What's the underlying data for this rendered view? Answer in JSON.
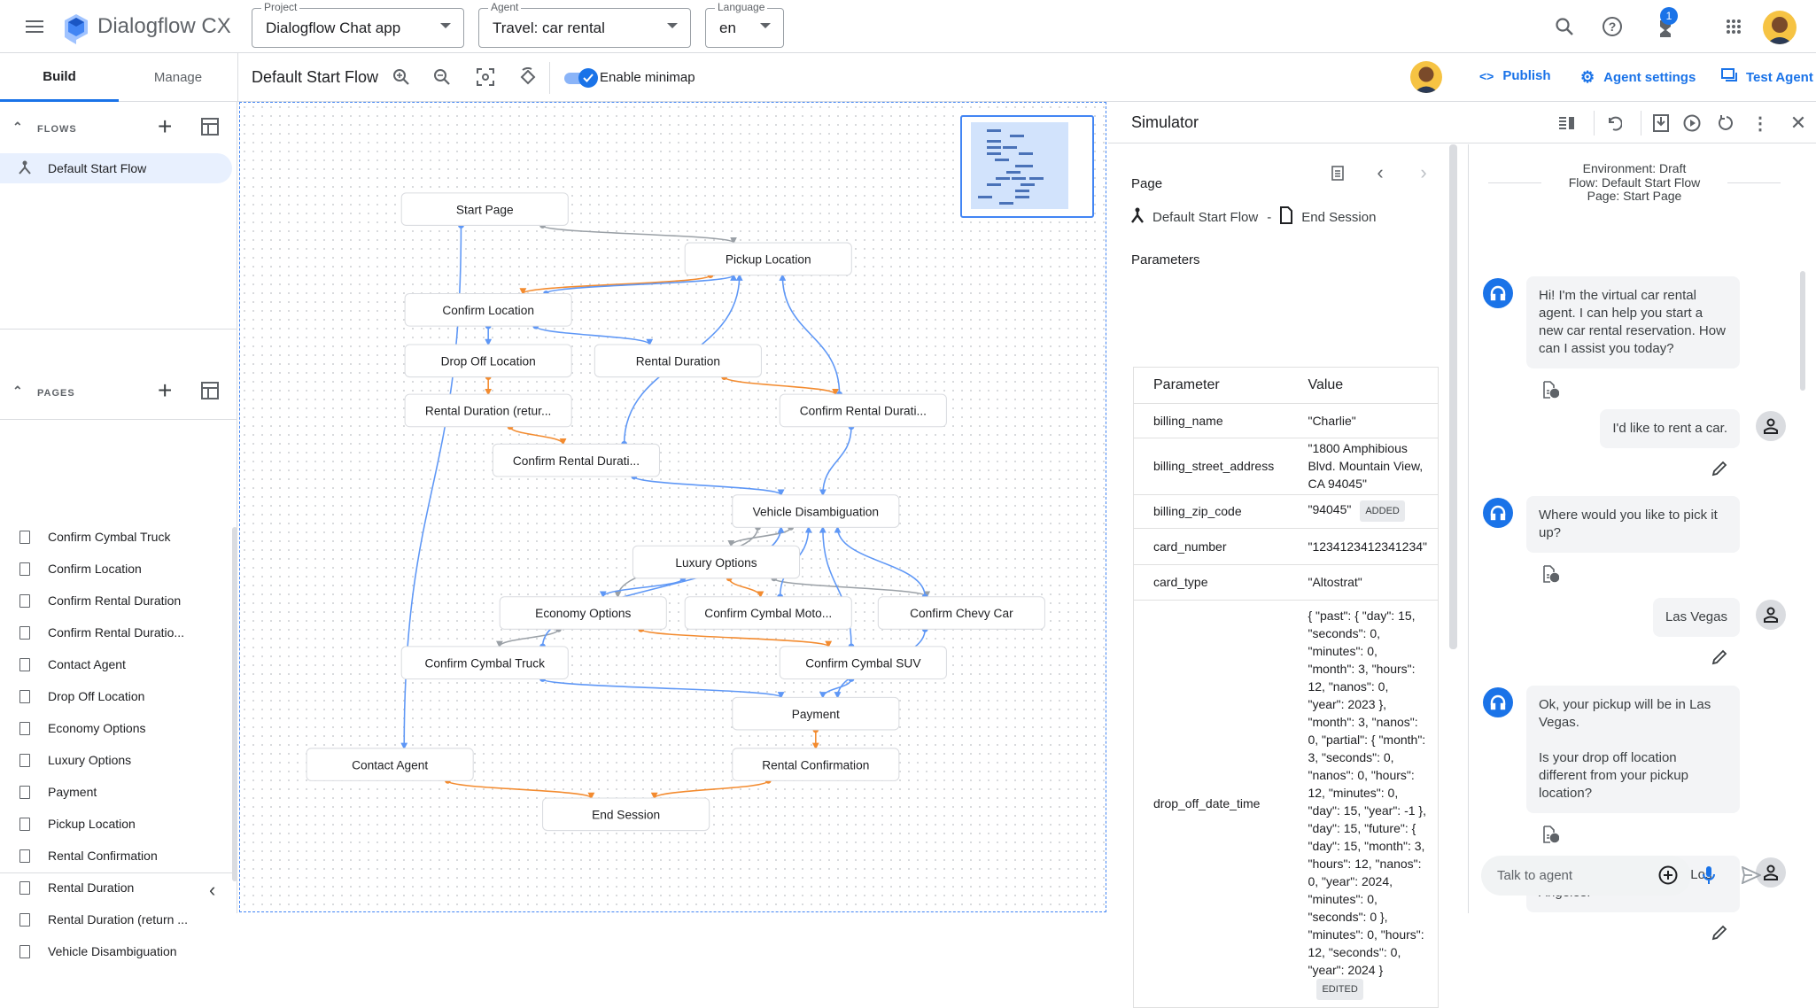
{
  "app": {
    "title": "Dialogflow CX",
    "brand_color": "#1a73e8"
  },
  "topbar": {
    "project": {
      "label": "Project",
      "value": "Dialogflow Chat app"
    },
    "agent": {
      "label": "Agent",
      "value": "Travel: car rental"
    },
    "language": {
      "label": "Language",
      "value": "en"
    },
    "notification_count": "1",
    "icons": [
      "menu-icon",
      "search-icon",
      "help-icon",
      "notifications-icon",
      "apps-icon",
      "avatar"
    ]
  },
  "tabs": {
    "build": "Build",
    "manage": "Manage"
  },
  "toolbar": {
    "flow_title": "Default Start Flow",
    "minimap_label": "Enable minimap",
    "minimap_enabled": true,
    "publish": "Publish",
    "agent_settings": "Agent settings",
    "test_agent": "Test Agent"
  },
  "sidebar": {
    "flows_header": "FLOWS",
    "flows": [
      {
        "label": "Default Start Flow",
        "selected": true
      }
    ],
    "pages_header": "PAGES",
    "pages": [
      "Confirm Cymbal Truck",
      "Confirm Location",
      "Confirm Rental Duration",
      "Confirm Rental Duratio...",
      "Contact Agent",
      "Drop Off Location",
      "Economy Options",
      "Luxury Options",
      "Payment",
      "Pickup Location",
      "Rental Confirmation",
      "Rental Duration",
      "Rental Duration (return ...",
      "Vehicle Disambiguation"
    ]
  },
  "graph": {
    "colors": {
      "gray": "#9aa0a6",
      "orange": "#f38b2f",
      "blue": "#5e97f6"
    },
    "nodes": [
      {
        "id": "start",
        "label": "Start Page"
      },
      {
        "id": "pickup",
        "label": "Pickup Location"
      },
      {
        "id": "confloc",
        "label": "Confirm Location"
      },
      {
        "id": "dropoff",
        "label": "Drop Off Location"
      },
      {
        "id": "rentdur",
        "label": "Rental Duration"
      },
      {
        "id": "rentret",
        "label": "Rental Duration (retur..."
      },
      {
        "id": "confdur1",
        "label": "Confirm Rental Durati..."
      },
      {
        "id": "confdur2",
        "label": "Confirm Rental Durati..."
      },
      {
        "id": "vehicle",
        "label": "Vehicle Disambiguation"
      },
      {
        "id": "luxury",
        "label": "Luxury Options"
      },
      {
        "id": "economy",
        "label": "Economy Options"
      },
      {
        "id": "moto",
        "label": "Confirm Cymbal Moto..."
      },
      {
        "id": "chevy",
        "label": "Confirm Chevy Car"
      },
      {
        "id": "truck",
        "label": "Confirm Cymbal Truck"
      },
      {
        "id": "suv",
        "label": "Confirm Cymbal SUV"
      },
      {
        "id": "payment",
        "label": "Payment"
      },
      {
        "id": "contact",
        "label": "Contact Agent"
      },
      {
        "id": "rentconf",
        "label": "Rental Confirmation"
      },
      {
        "id": "end",
        "label": "End Session"
      }
    ],
    "edges": [
      [
        "start",
        "pickup",
        "gray"
      ],
      [
        "start",
        "contact",
        "blue"
      ],
      [
        "pickup",
        "confloc",
        "orange"
      ],
      [
        "confloc",
        "pickup",
        "blue"
      ],
      [
        "confloc",
        "dropoff",
        "blue"
      ],
      [
        "confloc",
        "rentdur",
        "blue"
      ],
      [
        "dropoff",
        "rentret",
        "orange"
      ],
      [
        "rentret",
        "confdur2",
        "orange"
      ],
      [
        "confdur2",
        "pickup",
        "blue"
      ],
      [
        "rentdur",
        "confdur1",
        "orange"
      ],
      [
        "confdur1",
        "pickup",
        "blue"
      ],
      [
        "confdur1",
        "vehicle",
        "blue"
      ],
      [
        "confdur2",
        "vehicle",
        "blue"
      ],
      [
        "vehicle",
        "luxury",
        "gray"
      ],
      [
        "vehicle",
        "economy",
        "gray"
      ],
      [
        "luxury",
        "economy",
        "blue"
      ],
      [
        "luxury",
        "moto",
        "orange"
      ],
      [
        "luxury",
        "chevy",
        "gray"
      ],
      [
        "economy",
        "truck",
        "gray"
      ],
      [
        "economy",
        "suv",
        "orange"
      ],
      [
        "truck",
        "vehicle",
        "blue"
      ],
      [
        "truck",
        "payment",
        "blue"
      ],
      [
        "moto",
        "vehicle",
        "blue"
      ],
      [
        "suv",
        "vehicle",
        "blue"
      ],
      [
        "suv",
        "payment",
        "blue"
      ],
      [
        "chevy",
        "vehicle",
        "blue"
      ],
      [
        "chevy",
        "payment",
        "blue"
      ],
      [
        "payment",
        "rentconf",
        "orange"
      ],
      [
        "rentconf",
        "end",
        "orange"
      ],
      [
        "contact",
        "end",
        "orange"
      ]
    ]
  },
  "simulator": {
    "title": "Simulator",
    "page_label": "Page",
    "current_flow": "Default Start Flow",
    "separator": "-",
    "current_page": "End Session",
    "parameters_label": "Parameters",
    "table": {
      "headers": [
        "Parameter",
        "Value"
      ],
      "rows": [
        {
          "name": "billing_name",
          "value": "\"Charlie\"",
          "badge": ""
        },
        {
          "name": "billing_street_address",
          "value": "\"1800 Amphibious Blvd. Mountain View, CA 94045\"",
          "badge": ""
        },
        {
          "name": "billing_zip_code",
          "value": "\"94045\"",
          "badge": "ADDED"
        },
        {
          "name": "card_number",
          "value": "\"1234123412341234\"",
          "badge": ""
        },
        {
          "name": "card_type",
          "value": "\"Altostrat\"",
          "badge": ""
        },
        {
          "name": "drop_off_date_time",
          "value": "{ \"past\": { \"day\": 15, \"seconds\": 0, \"minutes\": 0, \"month\": 3, \"hours\": 12, \"nanos\": 0, \"year\": 2023 }, \"month\": 3, \"nanos\": 0, \"partial\": { \"month\": 3, \"seconds\": 0, \"nanos\": 0, \"hours\": 12, \"minutes\": 0, \"day\": 15, \"year\": -1 }, \"day\": 15, \"future\": { \"day\": 15, \"month\": 3, \"hours\": 12, \"nanos\": 0, \"year\": 2024, \"minutes\": 0, \"seconds\": 0 }, \"minutes\": 0, \"hours\": 12, \"seconds\": 0, \"year\": 2024 }",
          "badge": "EDITED"
        }
      ]
    },
    "chat": {
      "env": "Environment: Draft",
      "flow": "Flow: Default Start Flow",
      "page": "Page: Start Page",
      "messages": [
        {
          "from": "agent",
          "text": "Hi! I'm the virtual car rental agent. I can help you start a new car rental reservation. How can I assist you today?"
        },
        {
          "from": "user",
          "text": "I'd like to rent a car."
        },
        {
          "from": "agent",
          "text": "Where would you like to pick it up?"
        },
        {
          "from": "user",
          "text": "Las Vegas"
        },
        {
          "from": "agent",
          "text": "Ok, your pickup will be in Las Vegas.\n\nIs your drop off location different from your pickup location?"
        },
        {
          "from": "user",
          "text": "Yes. I'll drop the car off in Los Angeles."
        }
      ],
      "input_placeholder": "Talk to agent"
    }
  }
}
